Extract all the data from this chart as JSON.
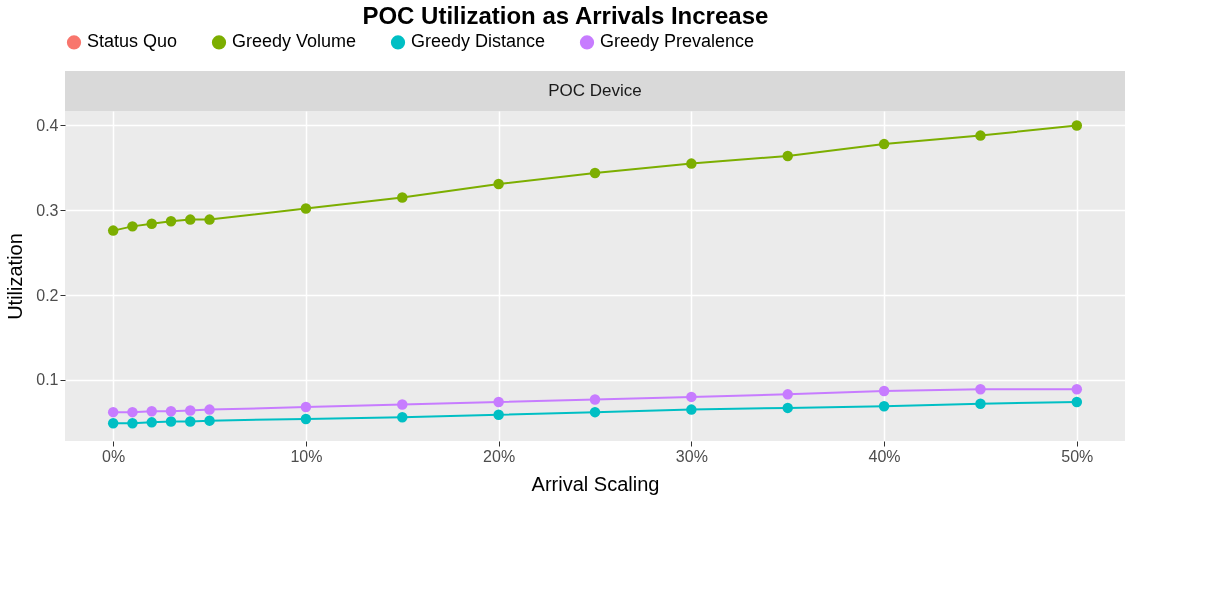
{
  "chart_data": {
    "type": "line",
    "title": "POC Utilization as Arrivals Increase",
    "subtitle": "POC Device",
    "xlabel": "Arrival Scaling",
    "ylabel": "Utilization",
    "x": [
      0,
      1,
      2,
      3,
      4,
      5,
      10,
      15,
      20,
      25,
      30,
      35,
      40,
      45,
      50
    ],
    "series": [
      {
        "name": "Status Quo",
        "color": "#f8766d",
        "values": [
          null,
          null,
          null,
          null,
          null,
          null,
          null,
          null,
          null,
          null,
          null,
          null,
          null,
          null,
          null
        ]
      },
      {
        "name": "Greedy Volume",
        "color": "#7cae00",
        "values": [
          0.276,
          0.281,
          0.284,
          0.287,
          0.289,
          0.289,
          0.302,
          0.315,
          0.331,
          0.344,
          0.355,
          0.364,
          0.378,
          0.388,
          0.4
        ]
      },
      {
        "name": "Greedy Distance",
        "color": "#00bfc4",
        "values": [
          0.049,
          0.049,
          0.05,
          0.051,
          0.051,
          0.052,
          0.054,
          0.056,
          0.059,
          0.062,
          0.065,
          0.067,
          0.069,
          0.072,
          0.074
        ]
      },
      {
        "name": "Greedy Prevalence",
        "color": "#c77cff",
        "values": [
          0.062,
          0.062,
          0.063,
          0.063,
          0.064,
          0.065,
          0.068,
          0.071,
          0.074,
          0.077,
          0.08,
          0.083,
          0.087,
          0.089,
          0.089
        ]
      }
    ],
    "xlim": [
      -2.5,
      52.5
    ],
    "xticks": [
      {
        "value": 0,
        "label": "0%"
      },
      {
        "value": 10,
        "label": "10%"
      },
      {
        "value": 20,
        "label": "20%"
      },
      {
        "value": 30,
        "label": "30%"
      },
      {
        "value": 40,
        "label": "40%"
      },
      {
        "value": 50,
        "label": "50%"
      }
    ],
    "ylim": [
      0.028,
      0.417
    ],
    "yticks": [
      0.1,
      0.2,
      0.3,
      0.4
    ],
    "grid": true,
    "legend": "top",
    "marker": "circle",
    "line_style": "solid"
  }
}
